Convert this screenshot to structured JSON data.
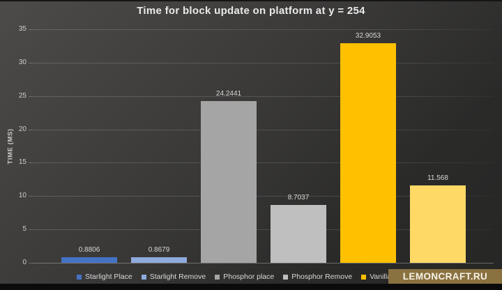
{
  "title": "Time for block update on platform at y = 254",
  "watermark": {
    "text": "LEMONCRAFT.RU",
    "bg_color": "#8a7140",
    "text_color": "#f7f3e8"
  },
  "chart_data": {
    "type": "bar",
    "title": "Time for block update on platform at y = 254",
    "xlabel": "",
    "ylabel": "TIME (MS)",
    "ylim": [
      0,
      35
    ],
    "yticks": [
      0,
      5,
      10,
      15,
      20,
      25,
      30,
      35
    ],
    "grid": true,
    "legend_position": "bottom",
    "background": "dark-gray-gradient",
    "series": [
      {
        "name": "Starlight Place",
        "value": 0.8806,
        "label": "0.8806",
        "color": "#4472C4"
      },
      {
        "name": "Starlight Remove",
        "value": 0.8679,
        "label": "0.8679",
        "color": "#8FAADC"
      },
      {
        "name": "Phosphor place",
        "value": 24.2441,
        "label": "24.2441",
        "color": "#A5A5A5"
      },
      {
        "name": "Phosphor Remove",
        "value": 8.7037,
        "label": "8.7037",
        "color": "#BFBFBF"
      },
      {
        "name": "Vanilla place",
        "value": 32.9053,
        "label": "32.9053",
        "color": "#FFC000"
      },
      {
        "name": "",
        "value": 11.568,
        "label": "11.568",
        "color": "#FFD966",
        "legend_label_obscured_by_watermark": true
      }
    ]
  }
}
